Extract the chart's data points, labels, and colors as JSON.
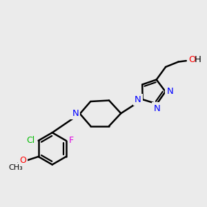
{
  "background_color": "#ebebeb",
  "bond_color": "#000000",
  "bond_width": 1.8,
  "atom_colors": {
    "N": "#0000ff",
    "O": "#ff0000",
    "Cl": "#00bb00",
    "F": "#dd00dd",
    "H": "#000000",
    "C": "#000000"
  },
  "figsize": [
    3.0,
    3.0
  ],
  "dpi": 100
}
